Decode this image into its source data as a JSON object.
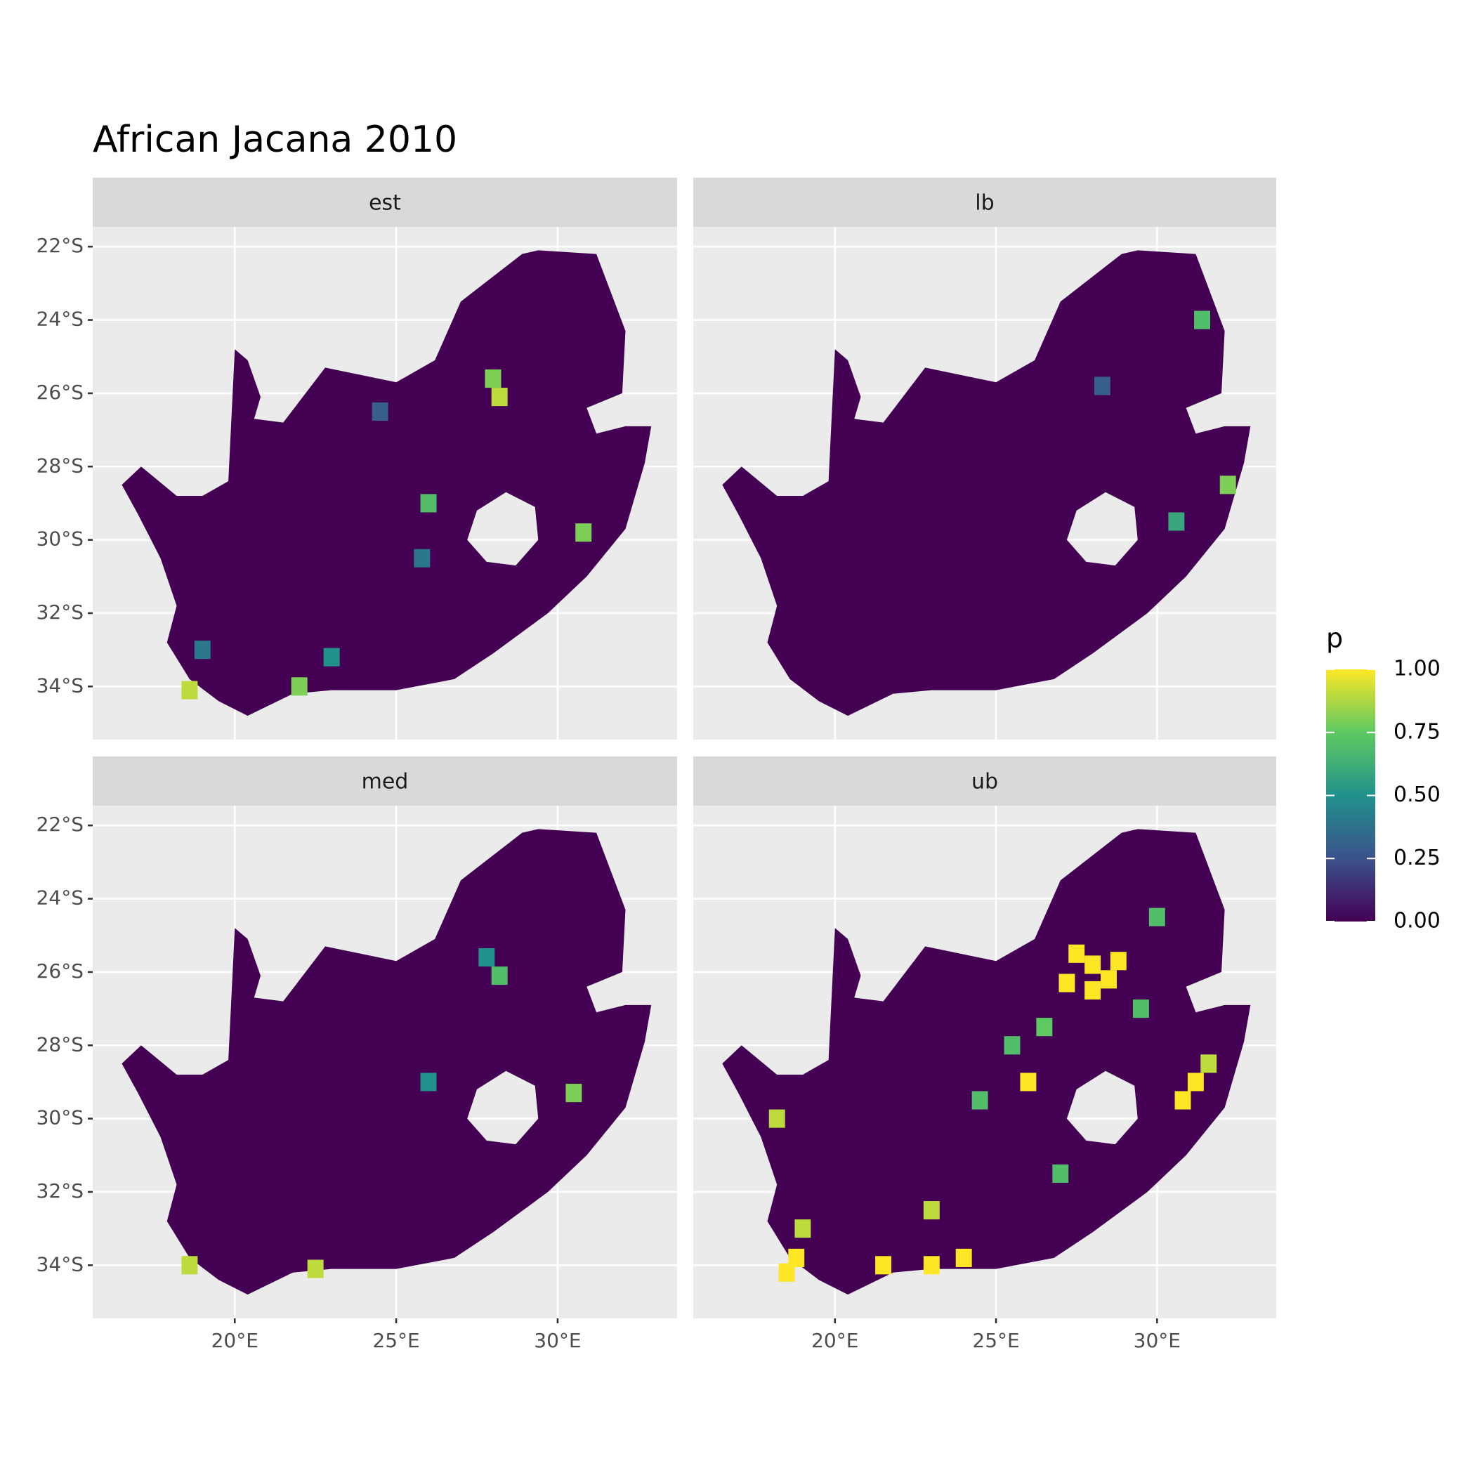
{
  "chart_data": {
    "type": "raster-map",
    "title": "African Jacana 2010",
    "xlim": [
      15.6,
      33.7
    ],
    "ylim": [
      -35.45,
      -21.46
    ],
    "xticks": [
      {
        "value": 20,
        "label": "20°E"
      },
      {
        "value": 25,
        "label": "25°E"
      },
      {
        "value": 30,
        "label": "30°E"
      }
    ],
    "yticks": [
      {
        "value": -22,
        "label": "22°S"
      },
      {
        "value": -24,
        "label": "24°S"
      },
      {
        "value": -26,
        "label": "26°S"
      },
      {
        "value": -28,
        "label": "28°S"
      },
      {
        "value": -30,
        "label": "30°S"
      },
      {
        "value": -32,
        "label": "32°S"
      },
      {
        "value": -34,
        "label": "34°S"
      }
    ],
    "grid": true,
    "outline": {
      "lon": [
        16.5,
        17.1,
        18.2,
        19.0,
        19.8,
        20.0,
        20.4,
        20.8,
        20.6,
        21.5,
        22.8,
        25.0,
        26.2,
        27.0,
        28.9,
        29.4,
        31.2,
        32.1,
        32.0,
        30.9,
        31.2,
        32.1,
        32.9,
        32.7,
        32.1,
        30.9,
        29.7,
        28.0,
        26.8,
        25.0,
        23.0,
        21.8,
        20.4,
        19.5,
        18.6,
        17.9,
        18.2,
        17.7,
        17.0
      ],
      "lat": [
        -28.5,
        -28.0,
        -28.8,
        -28.8,
        -28.4,
        -24.8,
        -25.1,
        -26.1,
        -26.7,
        -26.8,
        -25.3,
        -25.7,
        -25.1,
        -23.5,
        -22.2,
        -22.1,
        -22.2,
        -24.3,
        -26.0,
        -26.4,
        -27.1,
        -26.9,
        -26.9,
        -27.9,
        -29.7,
        -31.0,
        -32.0,
        -33.1,
        -33.8,
        -34.1,
        -34.1,
        -34.2,
        -34.8,
        -34.4,
        -33.8,
        -32.8,
        -31.8,
        -30.5,
        -29.3
      ]
    },
    "hole": {
      "lon": [
        27.2,
        27.5,
        28.4,
        29.3,
        29.4,
        28.7,
        27.8
      ],
      "lat": [
        -30.0,
        -29.2,
        -28.7,
        -29.1,
        -30.0,
        -30.7,
        -30.6
      ]
    },
    "facets": [
      {
        "name": "est",
        "cells": {
          "lon": [
            28.2,
            28.0,
            26.0,
            30.8,
            18.6,
            22.0,
            19.0,
            24.5,
            25.8,
            23.0
          ],
          "lat": [
            -26.1,
            -25.6,
            -29.0,
            -29.8,
            -34.1,
            -34.0,
            -33.0,
            -26.5,
            -30.5,
            -33.2
          ],
          "p": [
            0.9,
            0.8,
            0.7,
            0.8,
            0.9,
            0.8,
            0.4,
            0.3,
            0.4,
            0.5
          ]
        }
      },
      {
        "name": "lb",
        "cells": {
          "lon": [
            28.3,
            30.6,
            32.2,
            31.4
          ],
          "lat": [
            -25.8,
            -29.5,
            -28.5,
            -24.0
          ],
          "p": [
            0.3,
            0.6,
            0.8,
            0.7
          ]
        }
      },
      {
        "name": "med",
        "cells": {
          "lon": [
            28.2,
            26.0,
            30.5,
            18.6,
            22.5,
            27.8
          ],
          "lat": [
            -26.1,
            -29.0,
            -29.3,
            -34.0,
            -34.1,
            -25.6
          ],
          "p": [
            0.7,
            0.5,
            0.8,
            0.9,
            0.9,
            0.5
          ]
        }
      },
      {
        "name": "ub",
        "cells": {
          "lon": [
            27.5,
            28.0,
            28.5,
            28.0,
            27.2,
            28.8,
            26.0,
            30.8,
            31.2,
            31.6,
            18.8,
            18.5,
            19.0,
            21.5,
            23.0,
            24.0,
            25.5,
            24.5,
            26.5,
            29.5,
            30.0,
            23.0,
            27.0,
            18.2
          ],
          "lat": [
            -25.5,
            -25.8,
            -26.2,
            -26.5,
            -26.3,
            -25.7,
            -29.0,
            -29.5,
            -29.0,
            -28.5,
            -33.8,
            -34.2,
            -33.0,
            -34.0,
            -34.0,
            -33.8,
            -28.0,
            -29.5,
            -27.5,
            -27.0,
            -24.5,
            -32.5,
            -31.5,
            -30.0
          ],
          "p": [
            1.0,
            1.0,
            1.0,
            1.0,
            1.0,
            1.0,
            1.0,
            1.0,
            1.0,
            0.9,
            1.0,
            1.0,
            0.9,
            1.0,
            1.0,
            1.0,
            0.7,
            0.7,
            0.75,
            0.7,
            0.7,
            0.9,
            0.7,
            0.9
          ]
        }
      }
    ],
    "legend": {
      "title": "p",
      "colors": [
        "#440154",
        "#3b528b",
        "#21918c",
        "#5ec962",
        "#fde725"
      ],
      "limits": [
        0,
        1
      ],
      "ticks": [
        {
          "value": 0,
          "label": "0.00"
        },
        {
          "value": 0.25,
          "label": "0.25"
        },
        {
          "value": 0.5,
          "label": "0.50"
        },
        {
          "value": 0.75,
          "label": "0.75"
        },
        {
          "value": 1,
          "label": "1.00"
        }
      ]
    }
  }
}
